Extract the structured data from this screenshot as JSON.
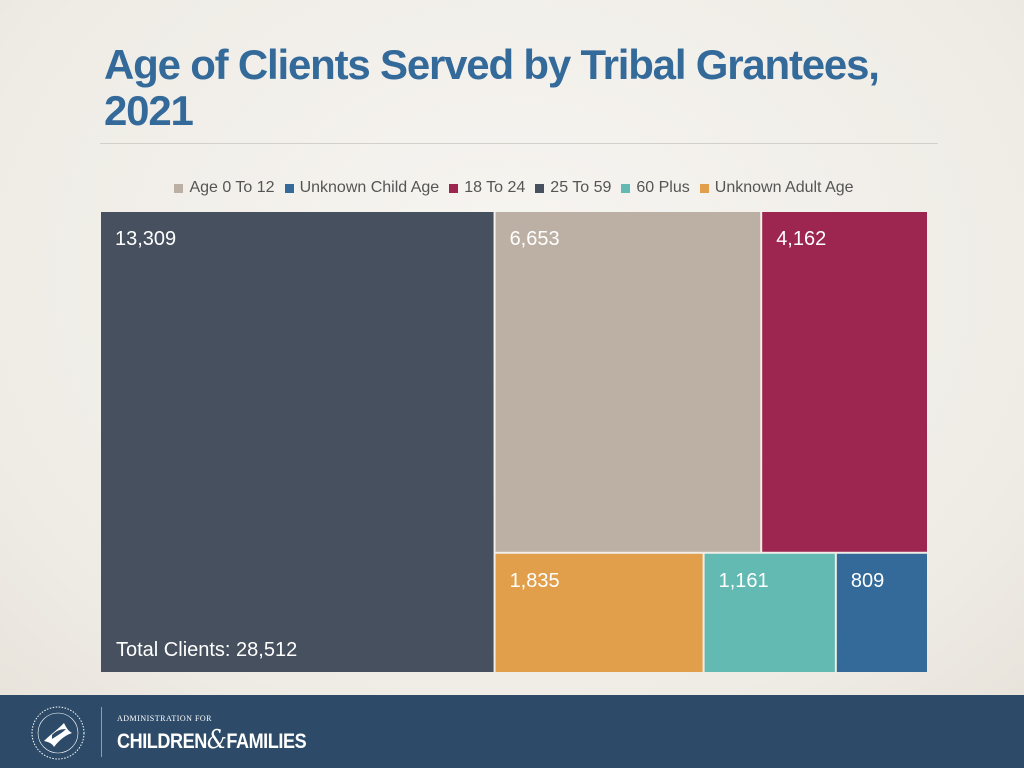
{
  "title": "Age of Clients Served by Tribal Grantees, 2021",
  "chart_data": {
    "type": "treemap",
    "title": "Age of Clients Served by Tribal Grantees, 2021",
    "legend_position": "top",
    "series": [
      {
        "name": "Age 0 To 12",
        "color": "#bcafa3"
      },
      {
        "name": "Unknown Child Age",
        "color": "#336a9a"
      },
      {
        "name": "18 To 24",
        "color": "#9c2650"
      },
      {
        "name": "25 To 59",
        "color": "#46505e"
      },
      {
        "name": "60 Plus",
        "color": "#62bab2"
      },
      {
        "name": "Unknown Adult Age",
        "color": "#e19f4b"
      }
    ],
    "values": [
      {
        "category": "25 To 59",
        "value": 13309,
        "label": "13,309"
      },
      {
        "category": "Age 0 To 12",
        "value": 6653,
        "label": "6,653"
      },
      {
        "category": "18 To 24",
        "value": 4162,
        "label": "4,162"
      },
      {
        "category": "Unknown Adult Age",
        "value": 1835,
        "label": "1,835"
      },
      {
        "category": "60 Plus",
        "value": 1161,
        "label": "1,161"
      },
      {
        "category": "Unknown Child Age",
        "value": 809,
        "label": "809"
      }
    ],
    "annotation": "Total Clients: 28,512"
  },
  "footer": {
    "brand_small": "ADMINISTRATION FOR",
    "brand_left": "CHILDREN",
    "brand_amp": "&",
    "brand_right": "FAMILIES",
    "seal_icon": "hhs-seal-icon"
  }
}
